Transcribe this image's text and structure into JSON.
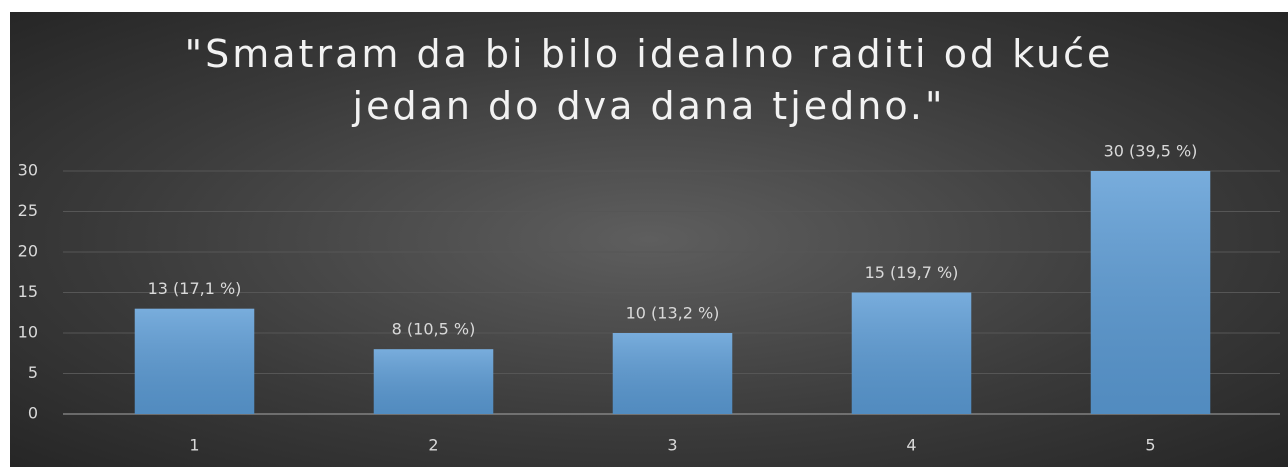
{
  "chart_data": {
    "type": "bar",
    "title": "\"Smatram da bi bilo idealno raditi od kuće jedan do dva dana tjedno.\"",
    "categories": [
      "1",
      "2",
      "3",
      "4",
      "5"
    ],
    "values": [
      13,
      8,
      10,
      15,
      30
    ],
    "value_labels": [
      "13 (17,1 %)",
      "8 (10,5 %)",
      "10 (13,2 %)",
      "15 (19,7 %)",
      "30 (39,5 %)"
    ],
    "color": "#5b9bd5",
    "ylim": [
      0,
      30
    ],
    "yticks": [
      0,
      5,
      10,
      15,
      20,
      25,
      30
    ],
    "grid": true
  }
}
